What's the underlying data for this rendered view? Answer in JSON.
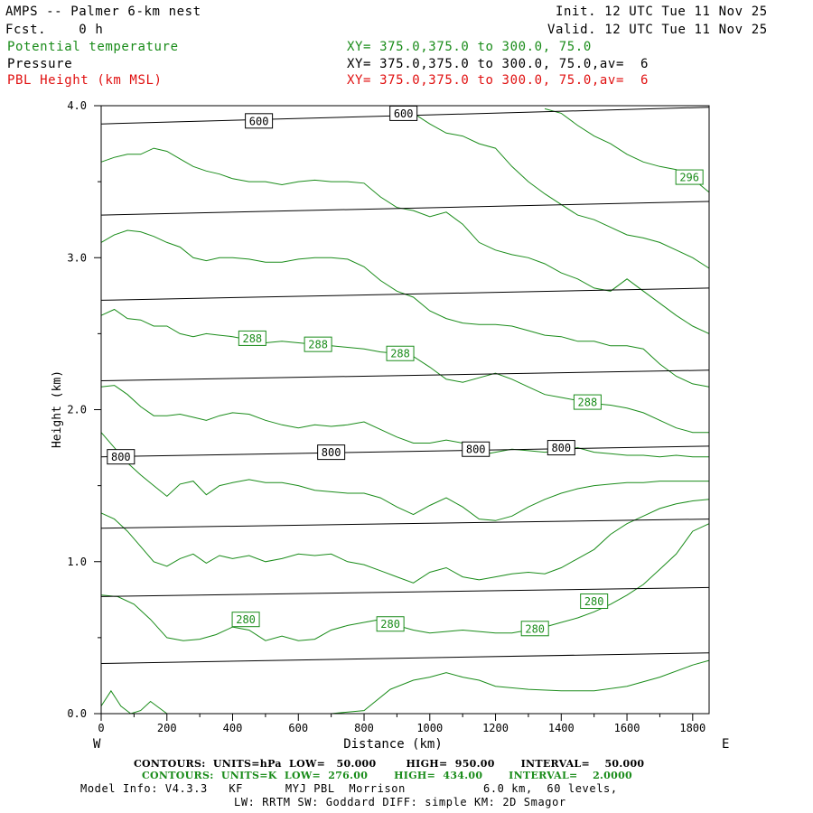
{
  "header": {
    "title": "AMPS -- Palmer 6-km nest",
    "fcst": "Fcst.    0 h",
    "init": "Init. 12 UTC Tue 11 Nov 25",
    "valid": "Valid. 12 UTC Tue 11 Nov 25",
    "field1_name": "Potential temperature",
    "field1_xy": "XY= 375.0,375.0 to 300.0, 75.0",
    "field2_name": "Pressure",
    "field2_xy": "XY= 375.0,375.0 to 300.0, 75.0,av=  6",
    "field3_name": "PBL Height (km MSL)",
    "field3_xy": "XY= 375.0,375.0 to 300.0, 75.0,av=  6"
  },
  "colors": {
    "theta": "#1a8c1a",
    "pressure": "#000000",
    "pbl": "#e01010"
  },
  "chart_data": {
    "type": "line",
    "title": "",
    "xlabel": "Distance (km)",
    "ylabel": "Height (km)",
    "xlim": [
      0,
      1850
    ],
    "ylim": [
      0,
      4
    ],
    "xticks": [
      "0",
      "200",
      "400",
      "600",
      "800",
      "1000",
      "1200",
      "1400",
      "1600",
      "1800"
    ],
    "yticks": [
      "0.0",
      "1.0",
      "2.0",
      "3.0",
      "4.0"
    ],
    "left_end_label": "W",
    "right_end_label": "E",
    "pressure_contours": [
      {
        "value": 950,
        "x": [
          0,
          1850
        ],
        "y": [
          0.33,
          0.4
        ]
      },
      {
        "value": 900,
        "x": [
          0,
          1850
        ],
        "y": [
          0.77,
          0.83
        ]
      },
      {
        "value": 850,
        "x": [
          0,
          1850
        ],
        "y": [
          1.22,
          1.28
        ]
      },
      {
        "value": 800,
        "x": [
          0,
          1850
        ],
        "y": [
          1.69,
          1.76
        ]
      },
      {
        "value": 750,
        "x": [
          0,
          1850
        ],
        "y": [
          2.19,
          2.26
        ]
      },
      {
        "value": 700,
        "x": [
          0,
          1850
        ],
        "y": [
          2.72,
          2.8
        ]
      },
      {
        "value": 650,
        "x": [
          0,
          1850
        ],
        "y": [
          3.28,
          3.37
        ]
      },
      {
        "value": 600,
        "x": [
          0,
          1850
        ],
        "y": [
          3.88,
          3.99
        ]
      }
    ],
    "pressure_labels": [
      {
        "text": "600",
        "x": 480,
        "y": 3.9
      },
      {
        "text": "600",
        "x": 920,
        "y": 3.95
      },
      {
        "text": "800",
        "x": 60,
        "y": 1.69
      },
      {
        "text": "800",
        "x": 700,
        "y": 1.72
      },
      {
        "text": "800",
        "x": 1140,
        "y": 1.74
      },
      {
        "text": "800",
        "x": 1400,
        "y": 1.75
      }
    ],
    "theta_contours": [
      {
        "x": [
          0,
          30,
          60,
          90,
          120,
          150,
          200,
          250,
          300,
          350,
          400,
          450,
          500,
          600,
          700,
          800,
          880,
          950,
          1000,
          1050,
          1100,
          1150,
          1200,
          1300,
          1400,
          1500,
          1600,
          1700,
          1800,
          1850
        ],
        "y": [
          0.05,
          0.15,
          0.05,
          0.0,
          0.02,
          0.08,
          0.0,
          0.0,
          0.0,
          0.0,
          0.0,
          0.0,
          0.0,
          0.0,
          0.0,
          0.02,
          0.16,
          0.22,
          0.24,
          0.27,
          0.24,
          0.22,
          0.18,
          0.16,
          0.15,
          0.15,
          0.18,
          0.24,
          0.32,
          0.35
        ]
      },
      {
        "x": [
          0,
          50,
          100,
          150,
          200,
          250,
          300,
          350,
          400,
          450,
          500,
          550,
          600,
          650,
          700,
          750,
          800,
          850,
          900,
          950,
          1000,
          1050,
          1100,
          1150,
          1200,
          1250,
          1300,
          1350,
          1400,
          1450,
          1500,
          1550,
          1600,
          1650,
          1700,
          1750,
          1800,
          1850
        ],
        "y": [
          0.78,
          0.77,
          0.72,
          0.62,
          0.5,
          0.48,
          0.49,
          0.52,
          0.57,
          0.55,
          0.48,
          0.51,
          0.48,
          0.49,
          0.55,
          0.58,
          0.6,
          0.62,
          0.58,
          0.55,
          0.53,
          0.54,
          0.55,
          0.54,
          0.53,
          0.53,
          0.55,
          0.57,
          0.6,
          0.63,
          0.67,
          0.72,
          0.78,
          0.85,
          0.95,
          1.05,
          1.2,
          1.25
        ]
      },
      {
        "x": [
          0,
          40,
          80,
          120,
          160,
          200,
          240,
          280,
          320,
          360,
          400,
          450,
          500,
          550,
          600,
          650,
          700,
          750,
          800,
          850,
          900,
          950,
          1000,
          1050,
          1100,
          1150,
          1200,
          1250,
          1300,
          1350,
          1400,
          1450,
          1500,
          1550,
          1600,
          1650,
          1700,
          1750,
          1800,
          1850
        ],
        "y": [
          1.32,
          1.28,
          1.2,
          1.1,
          1.0,
          0.97,
          1.02,
          1.05,
          0.99,
          1.04,
          1.02,
          1.04,
          1.0,
          1.02,
          1.05,
          1.04,
          1.05,
          1.0,
          0.98,
          0.94,
          0.9,
          0.86,
          0.93,
          0.96,
          0.9,
          0.88,
          0.9,
          0.92,
          0.93,
          0.92,
          0.96,
          1.02,
          1.08,
          1.18,
          1.25,
          1.3,
          1.35,
          1.38,
          1.4,
          1.41
        ]
      },
      {
        "x": [
          0,
          40,
          80,
          120,
          160,
          200,
          240,
          280,
          320,
          360,
          400,
          450,
          500,
          550,
          600,
          650,
          700,
          750,
          800,
          850,
          900,
          950,
          1000,
          1050,
          1100,
          1150,
          1200,
          1250,
          1300,
          1350,
          1400,
          1450,
          1500,
          1550,
          1600,
          1650,
          1700,
          1750,
          1800,
          1850
        ],
        "y": [
          1.85,
          1.75,
          1.65,
          1.57,
          1.5,
          1.43,
          1.51,
          1.53,
          1.44,
          1.5,
          1.52,
          1.54,
          1.52,
          1.52,
          1.5,
          1.47,
          1.46,
          1.45,
          1.45,
          1.42,
          1.36,
          1.31,
          1.37,
          1.42,
          1.36,
          1.28,
          1.27,
          1.3,
          1.36,
          1.41,
          1.45,
          1.48,
          1.5,
          1.51,
          1.52,
          1.52,
          1.53,
          1.53,
          1.53,
          1.53
        ]
      },
      {
        "x": [
          0,
          40,
          80,
          120,
          160,
          200,
          240,
          280,
          320,
          360,
          400,
          450,
          500,
          550,
          600,
          650,
          700,
          750,
          800,
          850,
          900,
          950,
          1000,
          1050,
          1100,
          1150,
          1200,
          1250,
          1300,
          1350,
          1400,
          1450,
          1500,
          1550,
          1600,
          1650,
          1700,
          1750,
          1800,
          1850
        ],
        "y": [
          2.15,
          2.16,
          2.1,
          2.02,
          1.96,
          1.96,
          1.97,
          1.95,
          1.93,
          1.96,
          1.98,
          1.97,
          1.93,
          1.9,
          1.88,
          1.9,
          1.89,
          1.9,
          1.92,
          1.87,
          1.82,
          1.78,
          1.78,
          1.8,
          1.78,
          1.7,
          1.72,
          1.74,
          1.73,
          1.72,
          1.73,
          1.75,
          1.72,
          1.71,
          1.7,
          1.7,
          1.69,
          1.7,
          1.69,
          1.69
        ]
      },
      {
        "x": [
          0,
          40,
          80,
          120,
          160,
          200,
          240,
          280,
          320,
          360,
          400,
          450,
          500,
          550,
          600,
          650,
          700,
          750,
          800,
          850,
          900,
          950,
          1000,
          1050,
          1100,
          1150,
          1200,
          1250,
          1300,
          1350,
          1400,
          1450,
          1500,
          1550,
          1600,
          1650,
          1700,
          1750,
          1800,
          1850
        ],
        "y": [
          2.62,
          2.66,
          2.6,
          2.59,
          2.55,
          2.55,
          2.5,
          2.48,
          2.5,
          2.49,
          2.48,
          2.46,
          2.44,
          2.45,
          2.44,
          2.43,
          2.42,
          2.41,
          2.4,
          2.38,
          2.37,
          2.35,
          2.28,
          2.2,
          2.18,
          2.21,
          2.24,
          2.2,
          2.15,
          2.1,
          2.08,
          2.06,
          2.04,
          2.03,
          2.01,
          1.98,
          1.93,
          1.88,
          1.85,
          1.85
        ]
      },
      {
        "x": [
          0,
          40,
          80,
          120,
          160,
          200,
          240,
          280,
          320,
          360,
          400,
          450,
          500,
          550,
          600,
          650,
          700,
          750,
          800,
          850,
          900,
          950,
          1000,
          1050,
          1100,
          1150,
          1200,
          1250,
          1300,
          1350,
          1400,
          1450,
          1500,
          1550,
          1600,
          1650,
          1700,
          1750,
          1800,
          1850
        ],
        "y": [
          3.1,
          3.15,
          3.18,
          3.17,
          3.14,
          3.1,
          3.07,
          3.0,
          2.98,
          3.0,
          3.0,
          2.99,
          2.97,
          2.97,
          2.99,
          3.0,
          3.0,
          2.99,
          2.94,
          2.85,
          2.78,
          2.74,
          2.65,
          2.6,
          2.57,
          2.56,
          2.56,
          2.55,
          2.52,
          2.49,
          2.48,
          2.45,
          2.45,
          2.42,
          2.42,
          2.4,
          2.3,
          2.22,
          2.17,
          2.15
        ]
      },
      {
        "x": [
          0,
          40,
          80,
          120,
          160,
          200,
          240,
          280,
          320,
          360,
          400,
          450,
          500,
          550,
          600,
          650,
          700,
          750,
          800,
          850,
          900,
          950,
          1000,
          1050,
          1100,
          1150,
          1200,
          1250,
          1300,
          1350,
          1400,
          1450,
          1500,
          1550,
          1600,
          1650,
          1700,
          1750,
          1800,
          1850
        ],
        "y": [
          3.63,
          3.66,
          3.68,
          3.68,
          3.72,
          3.7,
          3.65,
          3.6,
          3.57,
          3.55,
          3.52,
          3.5,
          3.5,
          3.48,
          3.5,
          3.51,
          3.5,
          3.5,
          3.49,
          3.4,
          3.33,
          3.31,
          3.27,
          3.3,
          3.22,
          3.1,
          3.05,
          3.02,
          3.0,
          2.96,
          2.9,
          2.86,
          2.8,
          2.78,
          2.86,
          2.78,
          2.7,
          2.62,
          2.55,
          2.5
        ]
      },
      {
        "x": [
          1350,
          1400,
          1450,
          1500,
          1550,
          1600,
          1650,
          1700,
          1750,
          1800,
          1850
        ],
        "y": [
          3.98,
          3.95,
          3.87,
          3.8,
          3.75,
          3.68,
          3.63,
          3.6,
          3.58,
          3.52,
          3.43
        ]
      },
      {
        "x": [
          900,
          950,
          1000,
          1050,
          1100,
          1150,
          1200,
          1250,
          1300,
          1350,
          1400,
          1450,
          1500,
          1550,
          1600,
          1650,
          1700,
          1750,
          1800,
          1850
        ],
        "y": [
          3.98,
          3.95,
          3.88,
          3.82,
          3.8,
          3.75,
          3.72,
          3.6,
          3.5,
          3.42,
          3.35,
          3.28,
          3.25,
          3.2,
          3.15,
          3.13,
          3.1,
          3.05,
          3.0,
          2.93
        ]
      }
    ],
    "theta_labels": [
      {
        "text": "296",
        "x": 1790,
        "y": 3.53
      },
      {
        "text": "288",
        "x": 460,
        "y": 2.47
      },
      {
        "text": "288",
        "x": 660,
        "y": 2.43
      },
      {
        "text": "288",
        "x": 910,
        "y": 2.37
      },
      {
        "text": "288",
        "x": 1480,
        "y": 2.05
      },
      {
        "text": "280",
        "x": 440,
        "y": 0.62
      },
      {
        "text": "280",
        "x": 880,
        "y": 0.59
      },
      {
        "text": "280",
        "x": 1320,
        "y": 0.56
      },
      {
        "text": "280",
        "x": 1500,
        "y": 0.74
      }
    ]
  },
  "footer": {
    "line1": "CONTOURS:  UNITS=hPa  LOW=   50.000        HIGH=  950.00       INTERVAL=    50.000",
    "line2": "CONTOURS:  UNITS=K  LOW=  276.00       HIGH=  434.00       INTERVAL=    2.0000",
    "line3": "Model Info: V4.3.3   KF      MYJ PBL  Morrison           6.0 km,  60 levels,",
    "line4": "LW: RRTM SW: Goddard DIFF: simple KM: 2D Smagor"
  }
}
